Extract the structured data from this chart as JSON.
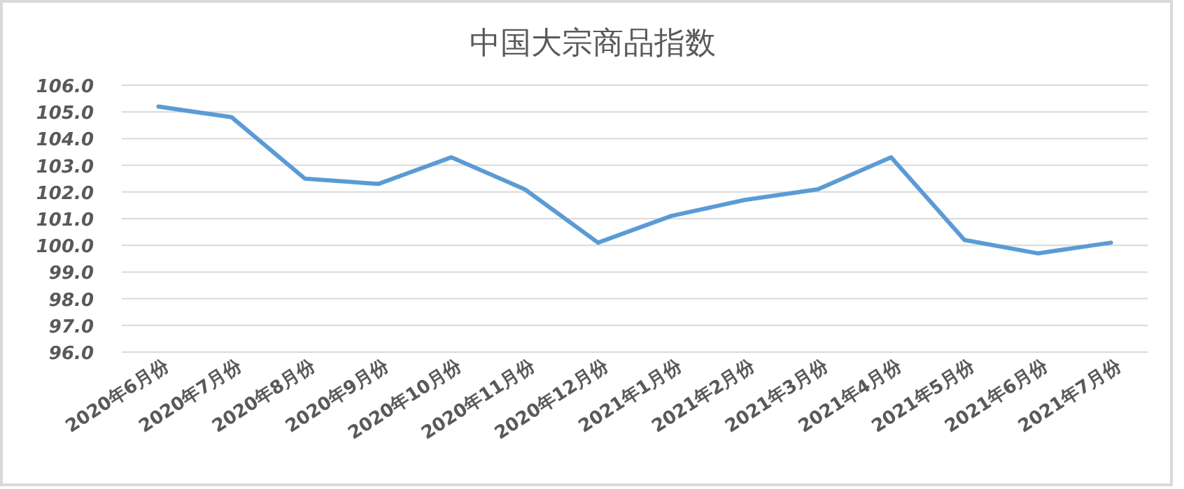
{
  "chart_data": {
    "type": "line",
    "title": "中国大宗商品指数",
    "categories": [
      "2020年6月份",
      "2020年7月份",
      "2020年8月份",
      "2020年9月份",
      "2020年10月份",
      "2020年11月份",
      "2020年12月份",
      "2021年1月份",
      "2021年2月份",
      "2021年3月份",
      "2021年4月份",
      "2021年5月份",
      "2021年6月份",
      "2021年7月份"
    ],
    "series": [
      {
        "color": "#5b9bd5",
        "values": [
          105.2,
          104.8,
          102.5,
          102.3,
          103.3,
          102.1,
          100.1,
          101.1,
          101.7,
          102.1,
          103.3,
          100.2,
          99.7,
          100.1
        ]
      }
    ],
    "ylim": [
      96,
      106
    ],
    "yticks": [
      {
        "value": 96,
        "label": "96.0"
      },
      {
        "value": 97,
        "label": "97.0"
      },
      {
        "value": 98,
        "label": "98.0"
      },
      {
        "value": 99,
        "label": "99.0"
      },
      {
        "value": 100,
        "label": "100.0"
      },
      {
        "value": 101,
        "label": "101.0"
      },
      {
        "value": 102,
        "label": "102.0"
      },
      {
        "value": 103,
        "label": "103.0"
      },
      {
        "value": 104,
        "label": "104.0"
      },
      {
        "value": 105,
        "label": "105.0"
      },
      {
        "value": 106,
        "label": "106.0"
      }
    ],
    "grid": "y",
    "marker": "none",
    "line_style": "solid"
  }
}
